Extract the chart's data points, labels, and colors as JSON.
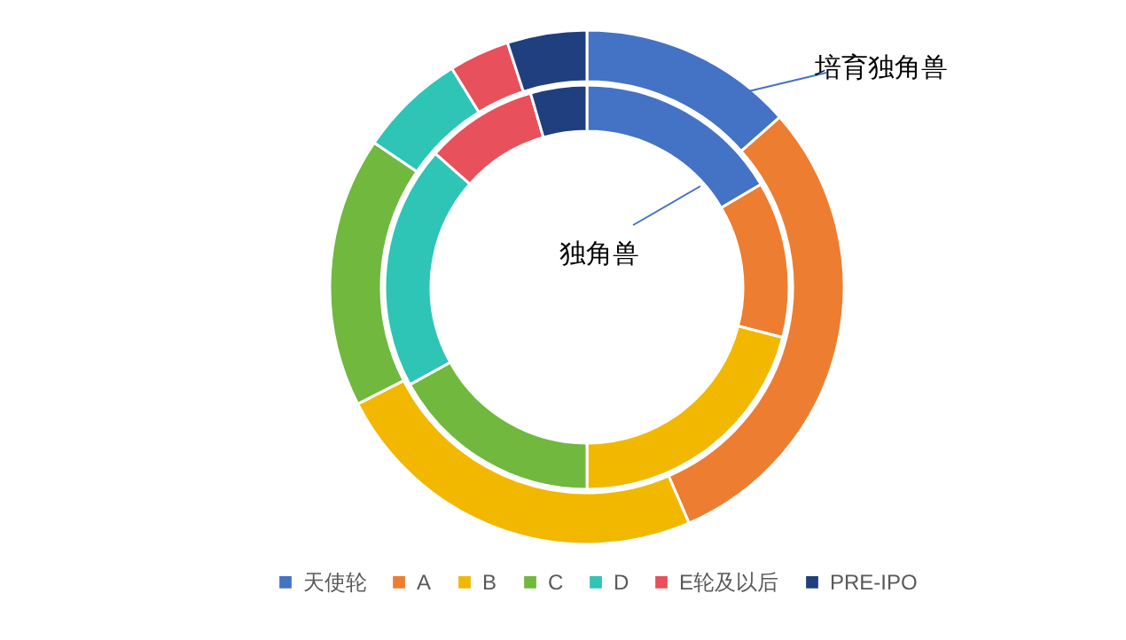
{
  "chart_data": {
    "type": "donut",
    "categories": [
      "天使轮",
      "A",
      "B",
      "C",
      "D",
      "E轮及以后",
      "PRE-IPO"
    ],
    "colors": [
      "#4472c4",
      "#ed7d31",
      "#f2b800",
      "#70b83e",
      "#2ec4b6",
      "#e8505b",
      "#203f7e"
    ],
    "series": [
      {
        "name": "培育独角兽",
        "values": [
          13.5,
          30,
          24,
          17,
          6.7,
          3.8,
          5
        ]
      },
      {
        "name": "独角兽",
        "values": [
          16.5,
          12.5,
          21,
          17,
          19.5,
          9,
          4.5
        ]
      }
    ],
    "legend": "bottom"
  }
}
